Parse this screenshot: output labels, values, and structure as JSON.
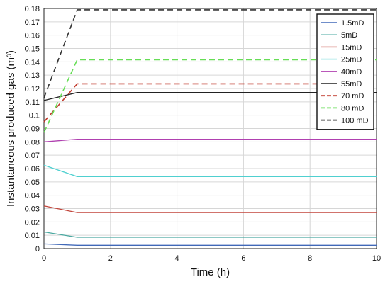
{
  "chart_data": {
    "type": "line",
    "title": "",
    "xlabel": "Time (h)",
    "ylabel": "Instantaneous produced gas (m³)",
    "xlim": [
      0,
      10
    ],
    "ylim": [
      0,
      0.18
    ],
    "x_ticks": [
      "0",
      "2",
      "4",
      "6",
      "8",
      "10"
    ],
    "y_ticks": [
      "0",
      "0.01",
      "0.02",
      "0.03",
      "0.04",
      "0.05",
      "0.06",
      "0.07",
      "0.08",
      "0.09",
      "0.1",
      "0.11",
      "0.12",
      "0.13",
      "0.14",
      "0.15",
      "0.16",
      "0.17",
      "0.18"
    ],
    "grid": true,
    "legend_position": "top-right",
    "x": [
      0,
      1,
      10
    ],
    "series": [
      {
        "name": "1.5mD",
        "color": "#4169b8",
        "dash": "solid",
        "values": [
          0.0035,
          0.0025,
          0.0025
        ]
      },
      {
        "name": "5mD",
        "color": "#4aa8a0",
        "dash": "solid",
        "values": [
          0.0125,
          0.0085,
          0.0085
        ]
      },
      {
        "name": "15mD",
        "color": "#c2453b",
        "dash": "solid",
        "values": [
          0.032,
          0.027,
          0.027
        ]
      },
      {
        "name": "25mD",
        "color": "#4fd0d0",
        "dash": "solid",
        "values": [
          0.0625,
          0.054,
          0.054
        ]
      },
      {
        "name": "40mD",
        "color": "#b040b0",
        "dash": "solid",
        "values": [
          0.08,
          0.082,
          0.082
        ]
      },
      {
        "name": "55mD",
        "color": "#222222",
        "dash": "solid",
        "values": [
          0.111,
          0.117,
          0.117
        ]
      },
      {
        "name": "70 mD",
        "color": "#c0392b",
        "dash": "dashed",
        "values": [
          0.095,
          0.1235,
          0.1235
        ]
      },
      {
        "name": "80 mD",
        "color": "#66dd55",
        "dash": "dashed",
        "values": [
          0.087,
          0.1415,
          0.1415
        ]
      },
      {
        "name": "100 mD",
        "color": "#333333",
        "dash": "dashed",
        "values": [
          0.113,
          0.179,
          0.179
        ]
      }
    ]
  }
}
